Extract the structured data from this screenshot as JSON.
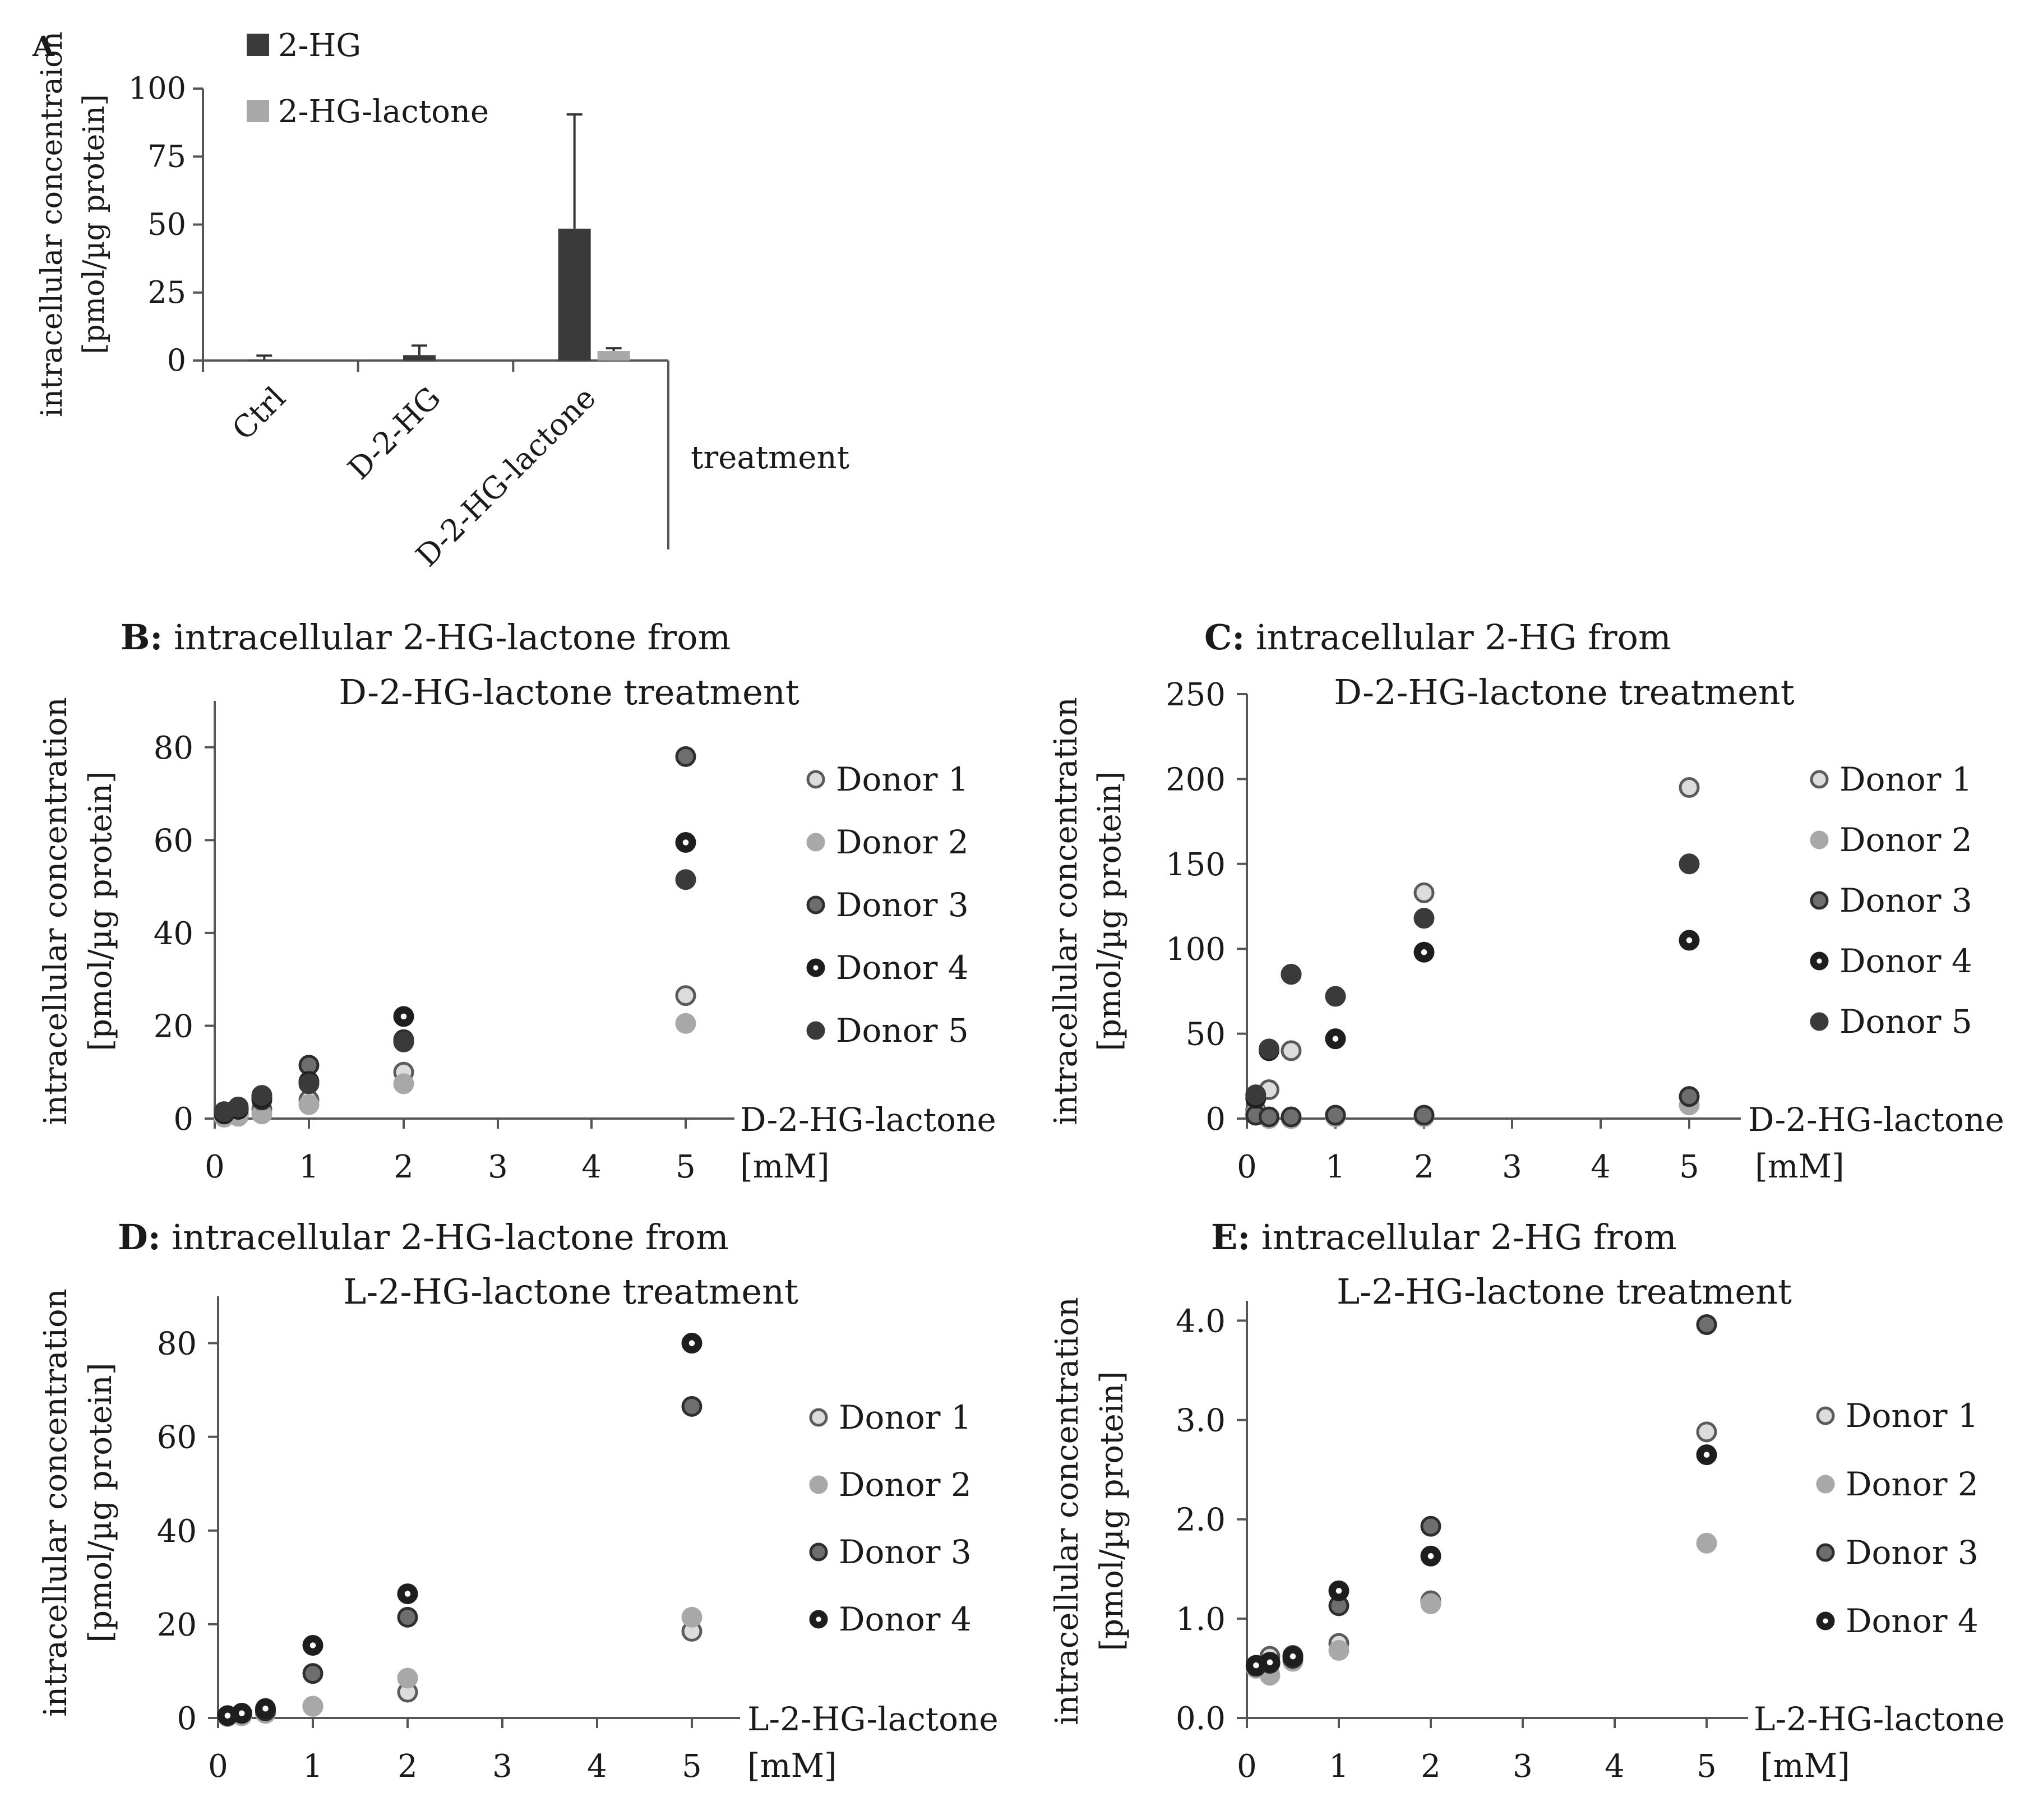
{
  "chart_data": [
    {
      "id": "A",
      "type": "bar",
      "panel_label": "A",
      "title": "",
      "ylabel_lines": [
        "intracellular concentraion",
        "[pmol/µg protein]"
      ],
      "xlabel": "treatment",
      "categories": [
        "Ctrl",
        "D-2-HG",
        "D-2-HG-lactone"
      ],
      "ylim": [
        0,
        100
      ],
      "yticks": [
        0,
        25,
        50,
        75,
        100
      ],
      "series": [
        {
          "name": "2-HG",
          "color": "#3a3a3a",
          "values": [
            0.3,
            2.0,
            48.5
          ],
          "errors": [
            1.5,
            3.5,
            42.0
          ]
        },
        {
          "name": "2-HG-lactone",
          "color": "#a8a8a8",
          "values": [
            0,
            0,
            3.5
          ],
          "errors": [
            0,
            0,
            1.0
          ]
        }
      ]
    },
    {
      "id": "B",
      "type": "scatter",
      "panel_label": "B:",
      "title_lines": [
        "intracellular 2-HG-lactone from",
        "D-2-HG-lactone treatment"
      ],
      "ylabel_lines": [
        "intracellular concentration",
        "[pmol/µg protein]"
      ],
      "xlabel": "D-2-HG-lactone",
      "xunit": "[mM]",
      "x_categories": [
        "0",
        "1",
        "2",
        "3",
        "4",
        "5"
      ],
      "ylim": [
        0,
        90
      ],
      "yticks": [
        0,
        20,
        40,
        60,
        80
      ],
      "series": [
        {
          "name": "Donor 1",
          "x": [
            0.1,
            0.25,
            0.5,
            1,
            2,
            5
          ],
          "y": [
            0.5,
            1.0,
            2.0,
            4.0,
            10.0,
            26.5
          ]
        },
        {
          "name": "Donor 2",
          "x": [
            0.1,
            0.25,
            0.5,
            1,
            2,
            5
          ],
          "y": [
            0.3,
            0.5,
            1.0,
            3.0,
            7.5,
            20.5
          ]
        },
        {
          "name": "Donor 3",
          "x": [
            0.1,
            0.25,
            0.5,
            1,
            2,
            5
          ],
          "y": [
            1.0,
            2.0,
            4.0,
            11.5,
            17.0,
            78.0
          ]
        },
        {
          "name": "Donor 4",
          "x": [
            0.1,
            0.25,
            0.5,
            1,
            2,
            5
          ],
          "y": [
            1.0,
            2.0,
            4.5,
            8.0,
            22.0,
            59.5
          ]
        },
        {
          "name": "Donor 5",
          "x": [
            0.1,
            0.25,
            0.5,
            1,
            2,
            5
          ],
          "y": [
            1.5,
            2.5,
            5.0,
            7.5,
            16.5,
            51.5
          ]
        }
      ]
    },
    {
      "id": "C",
      "type": "scatter",
      "panel_label": "C:",
      "title_lines": [
        "intracellular 2-HG from",
        "D-2-HG-lactone treatment"
      ],
      "ylabel_lines": [
        "intracellular concentration",
        "[pmol/µg protein]"
      ],
      "xlabel": "D-2-HG-lactone",
      "xunit": "[mM]",
      "x_categories": [
        "0",
        "1",
        "2",
        "3",
        "4",
        "5"
      ],
      "ylim": [
        0,
        250
      ],
      "yticks": [
        0,
        50,
        100,
        150,
        200,
        250
      ],
      "series": [
        {
          "name": "Donor 1",
          "x": [
            0.1,
            0.25,
            0.5,
            1,
            2,
            5
          ],
          "y": [
            5,
            17,
            40,
            2,
            133,
            195
          ]
        },
        {
          "name": "Donor 2",
          "x": [
            0.1,
            0.25,
            0.5,
            1,
            2,
            5
          ],
          "y": [
            3,
            0,
            0,
            1,
            1,
            8
          ]
        },
        {
          "name": "Donor 3",
          "x": [
            0.1,
            0.25,
            0.5,
            1,
            2,
            5
          ],
          "y": [
            2,
            1,
            1,
            2,
            2,
            13
          ]
        },
        {
          "name": "Donor 4",
          "x": [
            0.1,
            0.25,
            0.5,
            1,
            2,
            5
          ],
          "y": [
            12,
            40,
            85,
            47,
            98,
            105
          ]
        },
        {
          "name": "Donor 5",
          "x": [
            0.1,
            0.25,
            0.5,
            1,
            2,
            5
          ],
          "y": [
            14,
            41,
            85,
            72,
            118,
            150
          ]
        }
      ]
    },
    {
      "id": "D",
      "type": "scatter",
      "panel_label": "D:",
      "title_lines": [
        "intracellular 2-HG-lactone from",
        "L-2-HG-lactone treatment"
      ],
      "ylabel_lines": [
        "intracellular concentration",
        "[pmol/µg protein]"
      ],
      "xlabel": "L-2-HG-lactone",
      "xunit": "[mM]",
      "x_categories": [
        "0",
        "1",
        "2",
        "3",
        "4",
        "5"
      ],
      "ylim": [
        0,
        90
      ],
      "yticks": [
        0,
        20,
        40,
        60,
        80
      ],
      "series": [
        {
          "name": "Donor 1",
          "x": [
            0.1,
            0.25,
            0.5,
            1,
            2,
            5
          ],
          "y": [
            0.3,
            0.5,
            1.0,
            2.5,
            5.5,
            18.5
          ]
        },
        {
          "name": "Donor 2",
          "x": [
            0.1,
            0.25,
            0.5,
            1,
            2,
            5
          ],
          "y": [
            0.3,
            0.5,
            1.0,
            2.5,
            8.5,
            21.5
          ]
        },
        {
          "name": "Donor 3",
          "x": [
            0.1,
            0.25,
            0.5,
            1,
            2,
            5
          ],
          "y": [
            0.5,
            1.0,
            1.5,
            9.5,
            21.5,
            66.5
          ]
        },
        {
          "name": "Donor 4",
          "x": [
            0.1,
            0.25,
            0.5,
            1,
            2,
            5
          ],
          "y": [
            0.5,
            1.0,
            2.0,
            15.5,
            26.5,
            80.0
          ]
        }
      ]
    },
    {
      "id": "E",
      "type": "scatter",
      "panel_label": "E:",
      "title_lines": [
        "intracellular 2-HG from",
        "L-2-HG-lactone treatment"
      ],
      "ylabel_lines": [
        "intracellular concentration",
        "[pmol/µg protein]"
      ],
      "xlabel": "L-2-HG-lactone",
      "xunit": "[mM]",
      "x_categories": [
        "0",
        "1",
        "2",
        "3",
        "4",
        "5"
      ],
      "ylim": [
        0,
        4.2
      ],
      "yticks": [
        0.0,
        1.0,
        2.0,
        3.0,
        4.0
      ],
      "ytick_labels": [
        "0.0",
        "1.0",
        "2.0",
        "3.0",
        "4.0"
      ],
      "series": [
        {
          "name": "Donor 1",
          "x": [
            0.1,
            0.25,
            0.5,
            1,
            2,
            5
          ],
          "y": [
            0.52,
            0.62,
            0.63,
            0.75,
            1.18,
            2.88
          ]
        },
        {
          "name": "Donor 2",
          "x": [
            0.1,
            0.25,
            0.5,
            1,
            2,
            5
          ],
          "y": [
            0.5,
            0.43,
            0.57,
            0.68,
            1.15,
            1.76
          ]
        },
        {
          "name": "Donor 3",
          "x": [
            0.1,
            0.25,
            0.5,
            1,
            2,
            5
          ],
          "y": [
            0.52,
            0.55,
            0.6,
            1.13,
            1.93,
            3.96
          ]
        },
        {
          "name": "Donor 4",
          "x": [
            0.1,
            0.25,
            0.5,
            1,
            2,
            5
          ],
          "y": [
            0.53,
            0.56,
            0.62,
            1.28,
            1.63,
            2.65
          ]
        }
      ]
    }
  ],
  "donor_styles": {
    "Donor 1": {
      "fill": "#dcdcdc",
      "stroke": "#5a5a5a",
      "center": ""
    },
    "Donor 2": {
      "fill": "#a8a8a8",
      "stroke": "#a8a8a8",
      "center": ""
    },
    "Donor 3": {
      "fill": "#6e6e6e",
      "stroke": "#2e2e2e",
      "center": ""
    },
    "Donor 4": {
      "fill": "#1e1e1e",
      "stroke": "#1e1e1e",
      "center": "#ffffff"
    },
    "Donor 5": {
      "fill": "#3a3a3a",
      "stroke": "#3a3a3a",
      "center": ""
    }
  }
}
